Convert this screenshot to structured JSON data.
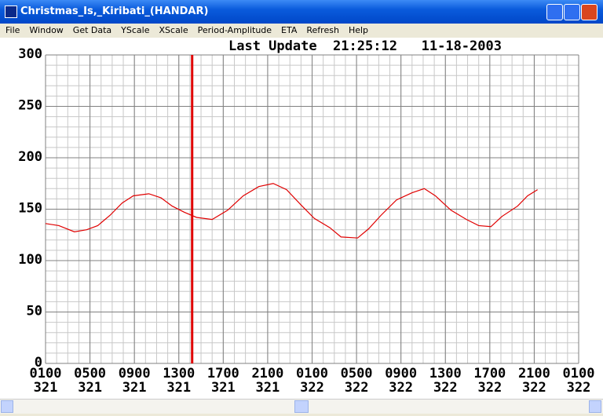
{
  "window": {
    "title": "Christmas_Is,_Kiribati_(HANDAR)"
  },
  "menu": [
    "File",
    "Window",
    "Get Data",
    "YScale",
    "XScale",
    "Period-Amplitude",
    "ETA",
    "Refresh",
    "Help"
  ],
  "chart_data": {
    "type": "line",
    "title": "Last Update  21:25:12   11-18-2003",
    "x": [
      0,
      1.2,
      2.6,
      3.7,
      4.7,
      5.8,
      6.9,
      7.9,
      9.3,
      10.4,
      11.4,
      12.5,
      13.6,
      15.0,
      16.4,
      17.8,
      19.2,
      20.5,
      21.7,
      23.1,
      24.2,
      25.6,
      26.6,
      28.1,
      29.1,
      30.2,
      31.6,
      33.0,
      34.1,
      35.1,
      36.5,
      37.9,
      39.0,
      40.1,
      41.1,
      42.5,
      43.4,
      44.3
    ],
    "series": [
      {
        "color": "#e00000",
        "values": [
          136,
          134,
          128,
          130,
          134,
          144,
          156,
          163,
          165,
          161,
          153,
          147,
          142,
          140,
          149,
          163,
          172,
          175,
          169,
          153,
          141,
          132,
          123,
          122,
          131,
          144,
          159,
          166,
          170,
          163,
          149,
          140,
          134,
          133,
          143,
          153,
          163,
          169
        ]
      }
    ],
    "xlim": [
      0,
      48
    ],
    "xticks": [
      {
        "value": 0,
        "label": "0100"
      },
      {
        "value": 4,
        "label": "0500"
      },
      {
        "value": 8,
        "label": "0900"
      },
      {
        "value": 12,
        "label": "1300"
      },
      {
        "value": 16,
        "label": "1700"
      },
      {
        "value": 20,
        "label": "2100"
      },
      {
        "value": 24,
        "label": "0100"
      },
      {
        "value": 28,
        "label": "0500"
      },
      {
        "value": 32,
        "label": "0900"
      },
      {
        "value": 36,
        "label": "1300"
      },
      {
        "value": 40,
        "label": "1700"
      },
      {
        "value": 44,
        "label": "2100"
      },
      {
        "value": 48,
        "label": "0100"
      }
    ],
    "xtick_days": [
      "321",
      "321",
      "321",
      "321",
      "321",
      "321",
      "322",
      "322",
      "322",
      "322",
      "322",
      "322",
      "322"
    ],
    "ylim": [
      0,
      300
    ],
    "yticks": [
      0,
      50,
      100,
      150,
      200,
      250,
      300
    ],
    "minor_grid": {
      "x_step": 1,
      "y_step": 10
    },
    "grid": true,
    "cursor_x": 13.2,
    "cursor_color": "#e00000"
  }
}
